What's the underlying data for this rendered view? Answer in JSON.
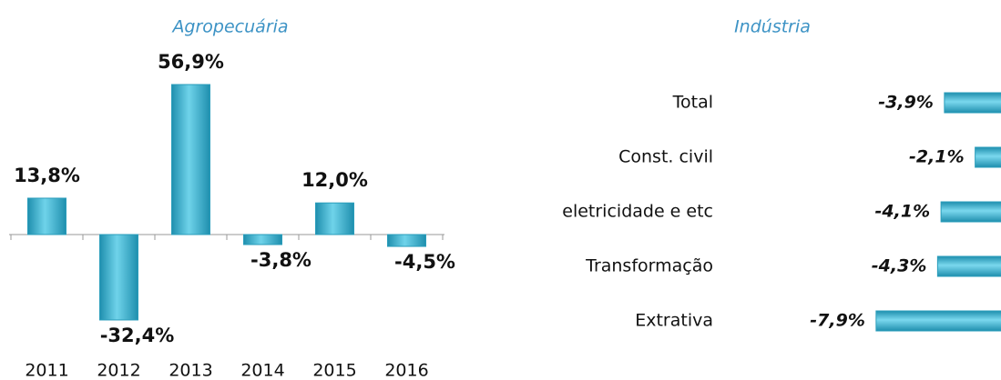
{
  "chart_data": [
    {
      "type": "bar",
      "title": "Agropecuária",
      "categories": [
        "2011",
        "2012",
        "2013",
        "2014",
        "2015",
        "2016"
      ],
      "values": [
        13.8,
        -32.4,
        56.9,
        -3.8,
        12.0,
        -4.5
      ],
      "value_labels": [
        "13,8%",
        "-32,4%",
        "56,9%",
        "-3,8%",
        "12,0%",
        "-4,5%"
      ],
      "color": "#3fb3d1"
    },
    {
      "type": "hbar",
      "title": "Indústria",
      "categories": [
        "Total",
        "Const. civil",
        "eletricidade e etc",
        "Transformação",
        "Extrativa"
      ],
      "values": [
        -3.9,
        -2.1,
        -4.1,
        -4.3,
        -7.9
      ],
      "value_labels": [
        "-3,9%",
        "-2,1%",
        "-4,1%",
        "-4,3%",
        "-7,9%"
      ],
      "color": "#3fb3d1"
    }
  ]
}
